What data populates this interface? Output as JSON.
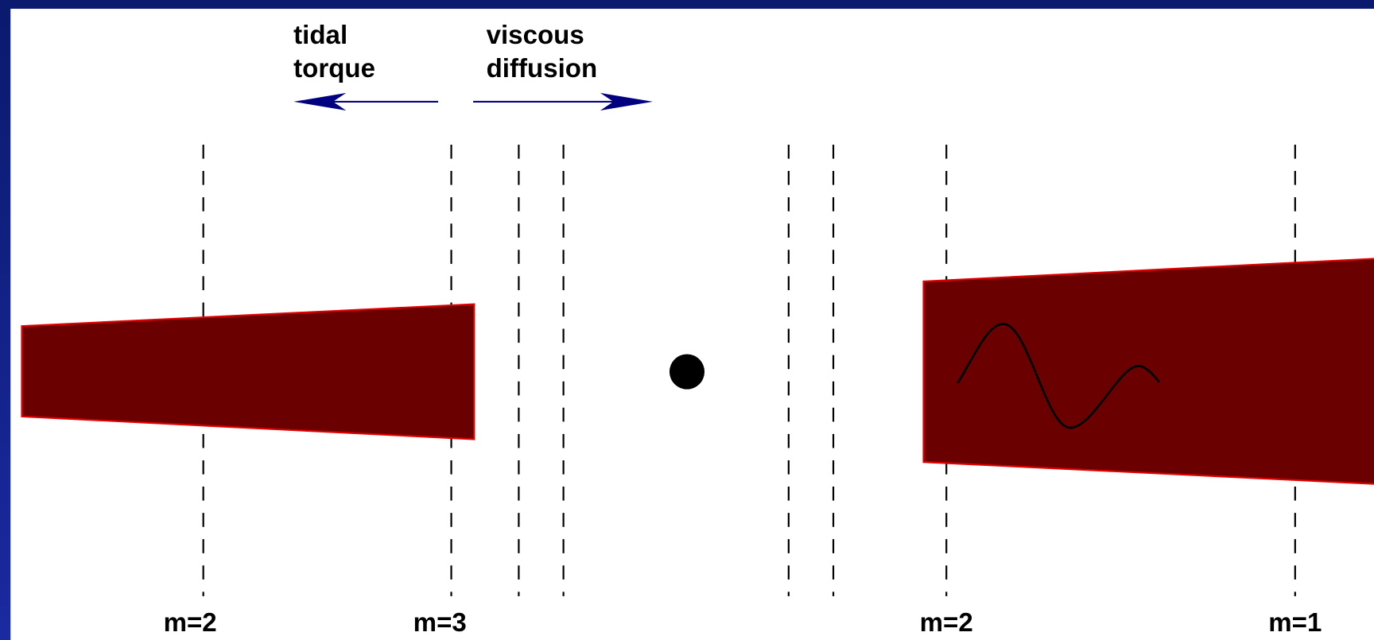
{
  "arrows": {
    "left": {
      "lines": [
        "tidal",
        "torque"
      ]
    },
    "right": {
      "lines": [
        "viscous",
        "diffusion"
      ]
    }
  },
  "resonance_labels": [
    "m=2",
    "m=3",
    "m=2",
    "m=1"
  ]
}
